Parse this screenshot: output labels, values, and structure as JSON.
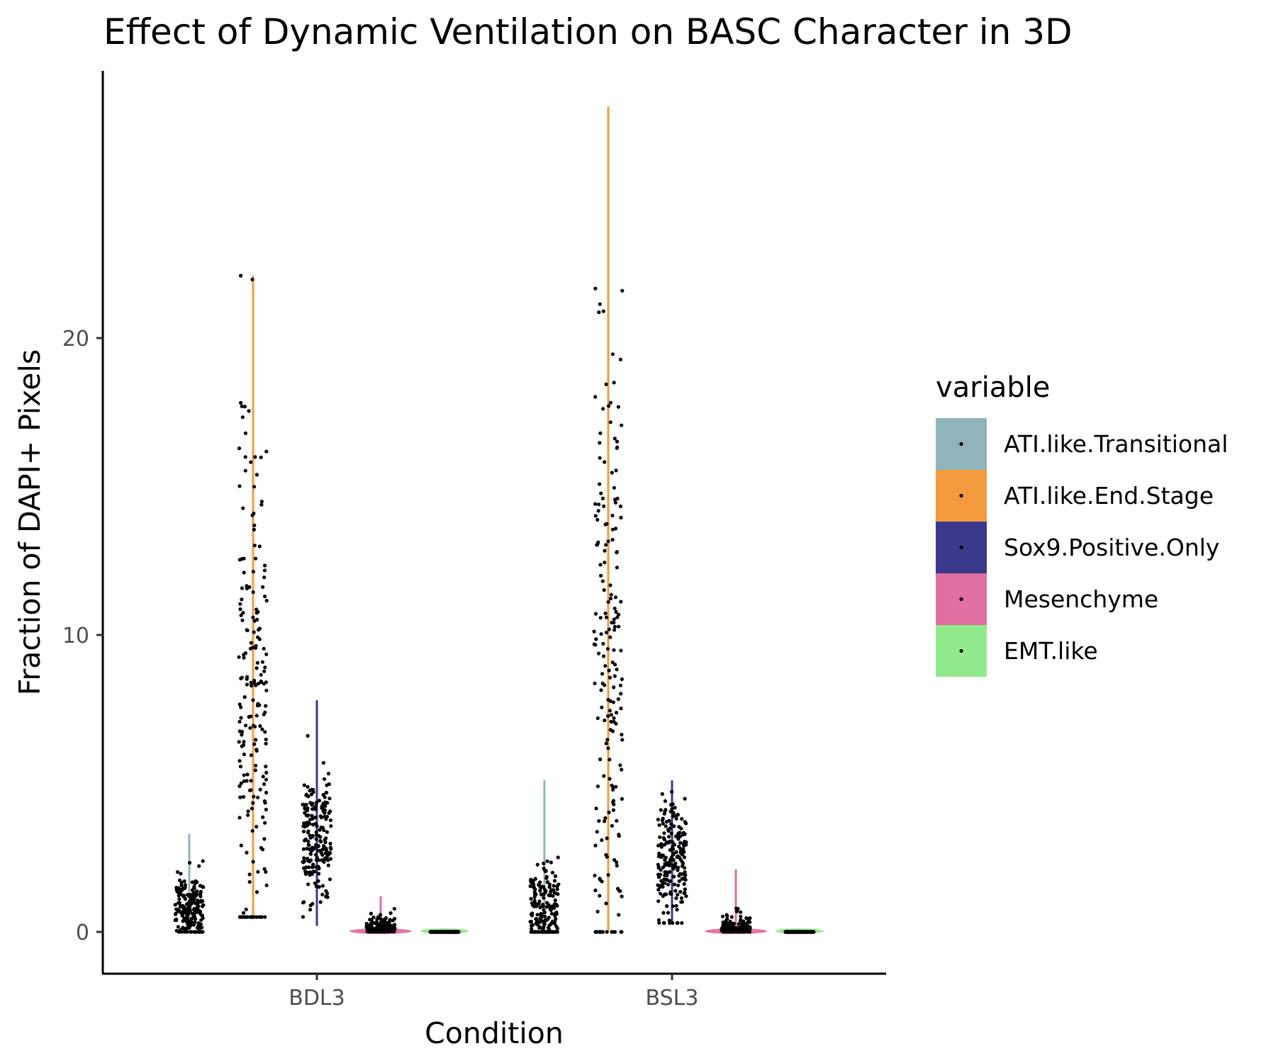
{
  "chart_data": {
    "type": "violin",
    "title": "Effect of Dynamic Ventilation on BASC Character in 3D",
    "xlabel": "Condition",
    "ylabel": "Fraction of DAPI+ Pixels",
    "categories": [
      "BDL3",
      "BSL3"
    ],
    "yticks": [
      0,
      10,
      20
    ],
    "ylim": [
      -1.4,
      29
    ],
    "grid": false,
    "legend_position": "right",
    "legend_title": "variable",
    "series": [
      {
        "name": "ATI.like.Transitional",
        "color": "#8fb4b9",
        "ranges": [
          [
            0,
            3.3
          ],
          [
            0,
            5.1
          ]
        ],
        "centers": [
          0.8,
          0.6
        ],
        "spreads": [
          0.6,
          0.8
        ]
      },
      {
        "name": "ATI.like.End.Stage",
        "color": "#f39a3e",
        "ranges": [
          [
            0.5,
            22.1
          ],
          [
            0,
            27.8
          ]
        ],
        "centers": [
          8.5,
          8.0
        ],
        "spreads": [
          4.5,
          6.0
        ]
      },
      {
        "name": "Sox9.Positive.Only",
        "color": "#3b398b",
        "ranges": [
          [
            0.2,
            7.8
          ],
          [
            0.3,
            5.1
          ]
        ],
        "centers": [
          3.0,
          2.4
        ],
        "spreads": [
          1.1,
          1.0
        ]
      },
      {
        "name": "Mesenchyme",
        "color": "#e06fa2",
        "ranges": [
          [
            0,
            1.2
          ],
          [
            0,
            2.1
          ]
        ],
        "centers": [
          0.15,
          0.1
        ],
        "spreads": [
          0.2,
          0.25
        ]
      },
      {
        "name": "EMT.like",
        "color": "#90ea8c",
        "ranges": [
          [
            0,
            0.02
          ],
          [
            0,
            0.02
          ]
        ],
        "centers": [
          0,
          0
        ],
        "spreads": [
          0,
          0
        ]
      }
    ]
  }
}
